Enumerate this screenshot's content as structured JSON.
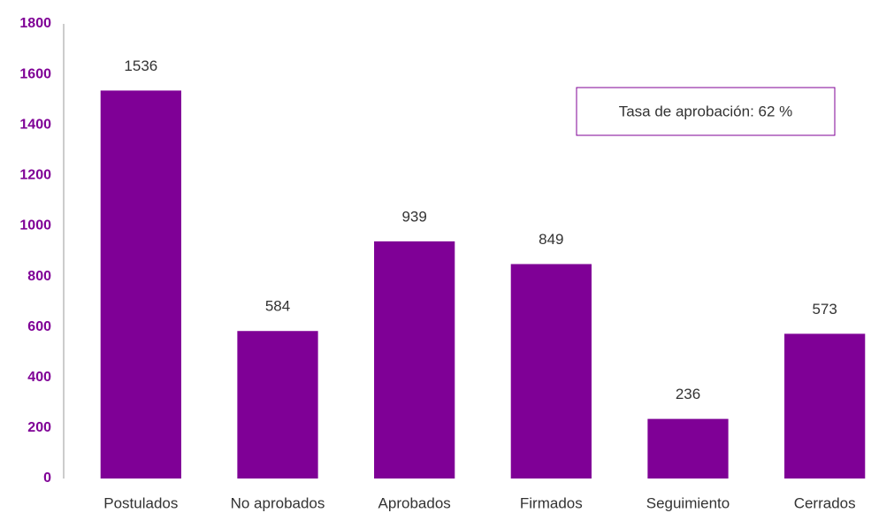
{
  "chart_data": {
    "type": "bar",
    "annotation": "Tasa de aprobación: 62 %",
    "categories": [
      "Postulados",
      "No aprobados",
      "Aprobados",
      "Firmados",
      "Seguimiento",
      "Cerrados"
    ],
    "values": [
      1536,
      584,
      939,
      849,
      236,
      573
    ],
    "color": "#7f0096",
    "ylim": [
      0,
      1800
    ],
    "yticks": [
      0,
      200,
      400,
      600,
      800,
      1000,
      1200,
      1400,
      1600,
      1800
    ],
    "grid": false
  }
}
